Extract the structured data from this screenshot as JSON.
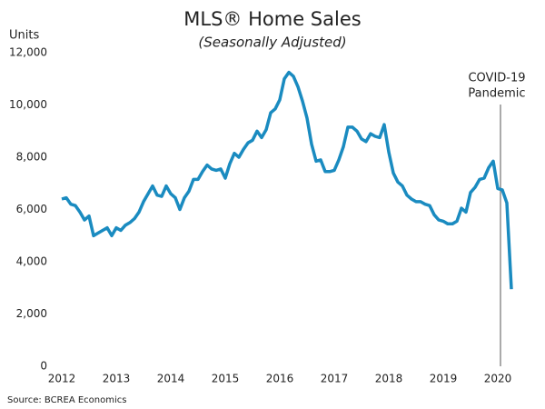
{
  "chart_data": {
    "type": "line",
    "title": "MLS® Home Sales",
    "subtitle": "(Seasonally Adjusted)",
    "y_label": "Units",
    "source": "Source: BCREA Economics",
    "annotation": [
      "COVID-19",
      "Pandemic"
    ],
    "color": "#1a8bc0",
    "categories": [
      "2012",
      null,
      null,
      null,
      null,
      null,
      null,
      null,
      null,
      null,
      null,
      null,
      "2013",
      null,
      null,
      null,
      null,
      null,
      null,
      null,
      null,
      null,
      null,
      null,
      "2014",
      null,
      null,
      null,
      null,
      null,
      null,
      null,
      null,
      null,
      null,
      null,
      "2015",
      null,
      null,
      null,
      null,
      null,
      null,
      null,
      null,
      null,
      null,
      null,
      "2016",
      null,
      null,
      null,
      null,
      null,
      null,
      null,
      null,
      null,
      null,
      null,
      "2017",
      null,
      null,
      null,
      null,
      null,
      null,
      null,
      null,
      null,
      null,
      null,
      "2018",
      null,
      null,
      null,
      null,
      null,
      null,
      null,
      null,
      null,
      null,
      null,
      "2019",
      null,
      null,
      null,
      null,
      null,
      null,
      null,
      null,
      null,
      null,
      null,
      "2020",
      null,
      null,
      null
    ],
    "values": [
      6400,
      6450,
      6200,
      6150,
      5900,
      5600,
      5750,
      5000,
      5100,
      5200,
      5300,
      5000,
      5300,
      5200,
      5400,
      5500,
      5650,
      5900,
      6300,
      6600,
      6900,
      6550,
      6500,
      6900,
      6600,
      6450,
      6000,
      6450,
      6700,
      7150,
      7150,
      7450,
      7700,
      7550,
      7500,
      7550,
      7200,
      7750,
      8150,
      8000,
      8300,
      8550,
      8650,
      9000,
      8750,
      9050,
      9700,
      9850,
      10200,
      11000,
      11250,
      11100,
      10700,
      10150,
      9500,
      8500,
      7850,
      7900,
      7450,
      7450,
      7500,
      7900,
      8400,
      9150,
      9150,
      9000,
      8700,
      8600,
      8900,
      8800,
      8750,
      9250,
      8200,
      7400,
      7050,
      6900,
      6550,
      6400,
      6300,
      6300,
      6200,
      6150,
      5800,
      5600,
      5550,
      5450,
      5450,
      5550,
      6050,
      5900,
      6650,
      6850,
      7150,
      7200,
      7600,
      7850,
      6800,
      6750,
      6250,
      2950
    ],
    "ylim": [
      0,
      12000
    ],
    "yticks": [
      0,
      {
        "value": 2000,
        "label": "2,000"
      },
      {
        "value": 4000,
        "label": "4,000"
      },
      {
        "value": 6000,
        "label": "6,000"
      },
      {
        "value": 8000,
        "label": "8,000"
      },
      {
        "value": 10000,
        "label": "10,000"
      },
      {
        "value": 12000,
        "label": "12,000"
      }
    ]
  }
}
